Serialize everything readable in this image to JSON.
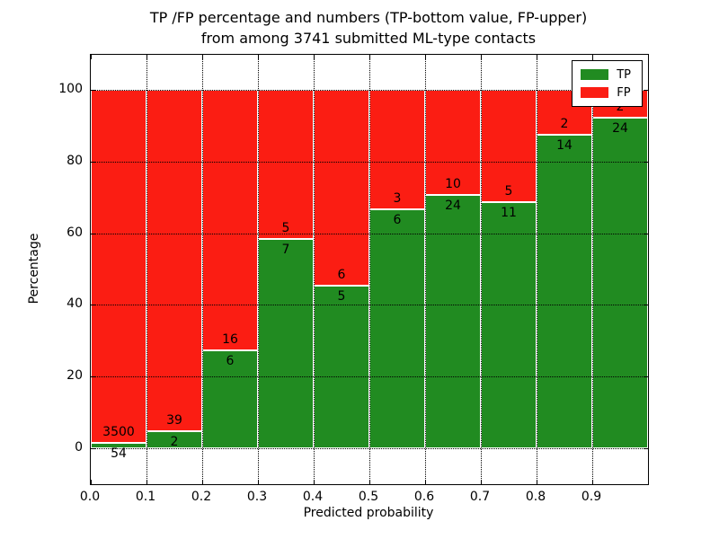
{
  "title": {
    "line1": "TP /FP percentage and numbers (TP-bottom value, FP-upper)",
    "line2": "from among 3741 submitted ML-type contacts"
  },
  "axes": {
    "xlabel": "Predicted probability",
    "ylabel": "Percentage",
    "yticks": [
      "0",
      "20",
      "40",
      "60",
      "80",
      "100"
    ],
    "ytick_values": [
      0,
      20,
      40,
      60,
      80,
      100
    ],
    "xticks": [
      "0.0",
      "0.1",
      "0.2",
      "0.3",
      "0.4",
      "0.5",
      "0.6",
      "0.7",
      "0.8",
      "0.9"
    ],
    "ylim": [
      -10,
      110
    ],
    "xlim": [
      0.0,
      1.0
    ],
    "grid_style": "dotted"
  },
  "legend": {
    "position": "upper right",
    "entries": [
      {
        "label": "TP",
        "color": "#218b21"
      },
      {
        "label": "FP",
        "color": "#fb1d13"
      }
    ]
  },
  "colors": {
    "tp": "#218b21",
    "fp": "#fb1d13",
    "grid": "#000000",
    "background": "#ffffff"
  },
  "chart_data": {
    "type": "bar",
    "stacked": true,
    "normalized_to_percent": true,
    "title": "TP /FP percentage and numbers (TP-bottom value, FP-upper) from among 3741 submitted ML-type contacts",
    "xlabel": "Predicted probability",
    "ylabel": "Percentage",
    "ylim": [
      -10,
      110
    ],
    "xlim": [
      0.0,
      1.0
    ],
    "bin_width": 0.1,
    "categories": [
      "0.0-0.1",
      "0.1-0.2",
      "0.2-0.3",
      "0.3-0.4",
      "0.4-0.5",
      "0.5-0.6",
      "0.6-0.7",
      "0.7-0.8",
      "0.8-0.9",
      "0.9-1.0"
    ],
    "bin_left_edges": [
      0.0,
      0.1,
      0.2,
      0.3,
      0.4,
      0.5,
      0.6,
      0.7,
      0.8,
      0.9
    ],
    "series": [
      {
        "name": "TP",
        "color": "#218b21",
        "counts": [
          54,
          2,
          6,
          7,
          5,
          6,
          24,
          11,
          14,
          24
        ],
        "percent": [
          1.52,
          4.88,
          27.27,
          58.33,
          45.45,
          66.67,
          70.59,
          68.75,
          87.5,
          92.31
        ]
      },
      {
        "name": "FP",
        "color": "#fb1d13",
        "counts": [
          3500,
          39,
          16,
          5,
          6,
          3,
          10,
          5,
          2,
          2
        ],
        "percent": [
          98.48,
          95.12,
          72.73,
          41.67,
          54.55,
          33.33,
          29.41,
          31.25,
          12.5,
          7.69
        ]
      }
    ],
    "total_count": 3741,
    "legend_position": "upper right",
    "grid": "on-dotted"
  }
}
